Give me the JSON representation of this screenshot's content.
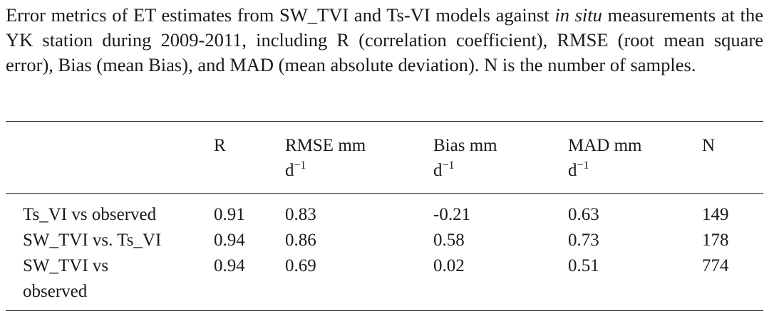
{
  "caption": {
    "before": "Error metrics of ET estimates from SW_TVI and Ts-VI models against ",
    "italic": "in situ",
    "after": " measurements at the YK station during 2009-2011, including R (correlation coefficient), RMSE (root mean square error), Bias (mean Bias), and MAD (mean absolute deviation). N is the number of samples."
  },
  "table": {
    "headers": [
      {
        "text": "R"
      },
      {
        "text": "RMSE mm",
        "unit": "d",
        "sup": "−1"
      },
      {
        "text": "Bias mm",
        "unit": "d",
        "sup": "−1"
      },
      {
        "text": "MAD mm",
        "unit": "d",
        "sup": "−1"
      },
      {
        "text": "N"
      }
    ],
    "rows": [
      [
        "Ts_VI vs observed",
        "0.91",
        "0.83",
        "-0.21",
        "0.63",
        "149"
      ],
      [
        "SW_TVI vs. Ts_VI",
        "0.94",
        "0.86",
        "0.58",
        "0.73",
        "178"
      ],
      [
        "SW_TVI vs observed",
        "0.94",
        "0.69",
        "0.02",
        "0.51",
        "774"
      ]
    ]
  }
}
